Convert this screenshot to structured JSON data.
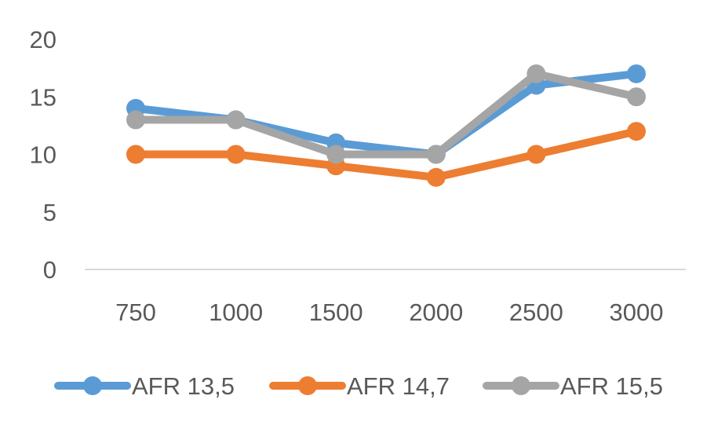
{
  "chart_data": {
    "type": "line",
    "title": "",
    "xlabel": "",
    "ylabel": "",
    "categories": [
      "750",
      "1000",
      "1500",
      "2000",
      "2500",
      "3000"
    ],
    "yticks": [
      "0",
      "5",
      "10",
      "15",
      "20"
    ],
    "ylim": [
      0,
      20
    ],
    "grid": false,
    "legend_position": "bottom",
    "series": [
      {
        "name": "AFR 13,5",
        "color": "#5b9bd5",
        "values": [
          14,
          13,
          11,
          10,
          16,
          17
        ]
      },
      {
        "name": "AFR 14,7",
        "color": "#ed7d31",
        "values": [
          10,
          10,
          9,
          8,
          10,
          12
        ]
      },
      {
        "name": "AFR 15,5",
        "color": "#a5a5a5",
        "values": [
          13,
          13,
          10,
          10,
          17,
          15
        ]
      }
    ]
  }
}
